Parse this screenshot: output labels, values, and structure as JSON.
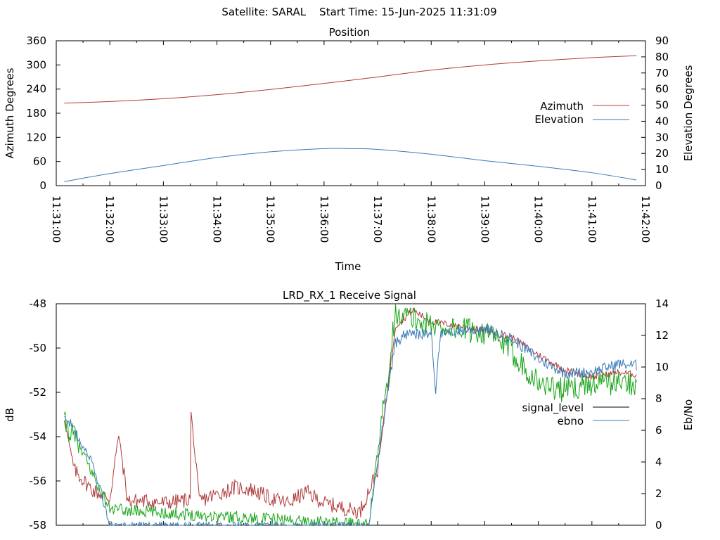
{
  "header": {
    "title": "Satellite: SARAL    Start Time: 15-Jun-2025 11:31:09"
  },
  "colors": {
    "azimuth": "#b03a3a",
    "elevation": "#3a7ab8",
    "signal_level": "#b03a3a",
    "ebno_green": "#1aa51a",
    "ebno_blue": "#3a7ab8"
  },
  "chart_data": [
    {
      "type": "line",
      "title": "Position",
      "xlabel": "Time",
      "ylabel": "Azimuth Degrees",
      "y2label": "Elevation Degrees",
      "xlim": [
        "11:31:00",
        "11:42:00"
      ],
      "ylim": [
        0,
        360
      ],
      "y2lim": [
        0,
        90
      ],
      "yticks": [
        "0",
        "60",
        "120",
        "180",
        "240",
        "300",
        "360"
      ],
      "y2ticks": [
        "0",
        "10",
        "20",
        "30",
        "40",
        "50",
        "60",
        "70",
        "80",
        "90"
      ],
      "xticks": [
        "11:31:00",
        "11:32:00",
        "11:33:00",
        "11:34:00",
        "11:35:00",
        "11:36:00",
        "11:37:00",
        "11:38:00",
        "11:39:00",
        "11:40:00",
        "11:41:00",
        "11:42:00"
      ],
      "legend_position": "right",
      "series": [
        {
          "name": "Azimuth",
          "axis": "left",
          "x": [
            "11:31:09",
            "11:32:00",
            "11:33:00",
            "11:34:00",
            "11:35:00",
            "11:36:00",
            "11:36:30",
            "11:37:00",
            "11:38:00",
            "11:39:00",
            "11:40:00",
            "11:41:00",
            "11:41:50"
          ],
          "values": [
            205,
            209,
            216,
            226,
            239,
            254,
            262,
            270,
            287,
            300,
            310,
            318,
            323
          ]
        },
        {
          "name": "Elevation",
          "axis": "right",
          "x": [
            "11:31:09",
            "11:32:00",
            "11:33:00",
            "11:34:00",
            "11:35:00",
            "11:36:00",
            "11:36:30",
            "11:37:00",
            "11:38:00",
            "11:39:00",
            "11:40:00",
            "11:41:00",
            "11:41:50"
          ],
          "values": [
            2.5,
            7.5,
            12.5,
            17.5,
            21,
            23,
            23,
            22.5,
            19.5,
            15.5,
            12,
            8,
            3.5
          ]
        }
      ]
    },
    {
      "type": "line",
      "title": "LRD_RX_1 Receive Signal",
      "ylabel": "dB",
      "y2label": "Eb/No",
      "ylim": [
        -58,
        -48
      ],
      "y2lim": [
        0,
        14
      ],
      "yticks": [
        "-58",
        "-56",
        "-54",
        "-52",
        "-50",
        "-48"
      ],
      "y2ticks": [
        "0",
        "2",
        "4",
        "6",
        "8",
        "10",
        "12",
        "14"
      ],
      "xlim": [
        "11:31:00",
        "11:42:00"
      ],
      "legend_position": "right",
      "series": [
        {
          "name": "signal_level",
          "axis": "left",
          "x": [
            "11:31:09",
            "11:31:20",
            "11:31:40",
            "11:32:00",
            "11:32:10",
            "11:32:20",
            "11:32:40",
            "11:33:00",
            "11:33:20",
            "11:33:30",
            "11:33:31",
            "11:33:40",
            "11:34:00",
            "11:34:20",
            "11:34:40",
            "11:35:00",
            "11:35:20",
            "11:35:40",
            "11:36:00",
            "11:36:20",
            "11:36:40",
            "11:37:00",
            "11:37:20",
            "11:37:40",
            "11:38:00",
            "11:38:30",
            "11:39:00",
            "11:39:30",
            "11:40:00",
            "11:40:30",
            "11:41:00",
            "11:41:30",
            "11:41:50"
          ],
          "values": [
            -53.2,
            -55.5,
            -56.4,
            -56.8,
            -53.9,
            -56.9,
            -56.9,
            -57.0,
            -56.9,
            -56.8,
            -52.9,
            -56.9,
            -56.6,
            -56.3,
            -56.4,
            -56.8,
            -57.0,
            -56.5,
            -57.0,
            -57.2,
            -57.4,
            -55.5,
            -49.0,
            -48.3,
            -48.8,
            -49.0,
            -49.2,
            -49.5,
            -50.3,
            -51.0,
            -51.3,
            -51.1,
            -51.2
          ]
        },
        {
          "name": "ebno",
          "axis": "right",
          "x": [
            "11:31:09",
            "11:31:20",
            "11:31:40",
            "11:32:00",
            "11:32:30",
            "11:33:00",
            "11:34:00",
            "11:35:00",
            "11:36:00",
            "11:36:50",
            "11:37:10",
            "11:37:20",
            "11:37:30",
            "11:38:00",
            "11:38:05",
            "11:38:10",
            "11:38:30",
            "11:39:00",
            "11:39:30",
            "11:40:00",
            "11:40:30",
            "11:41:00",
            "11:41:30",
            "11:41:50"
          ],
          "values": [
            7.0,
            6.0,
            4.0,
            0.0,
            0.0,
            0.0,
            0.0,
            0.0,
            0.0,
            0.0,
            8.0,
            11.5,
            12.0,
            12.1,
            8.6,
            12.0,
            12.3,
            12.4,
            11.8,
            10.5,
            9.6,
            9.7,
            10.2,
            10.1
          ]
        }
      ]
    }
  ],
  "legend": {
    "position_label_az": "Azimuth",
    "position_label_el": "Elevation",
    "signal_label_sig": "signal_level",
    "signal_label_ebno": "ebno"
  }
}
